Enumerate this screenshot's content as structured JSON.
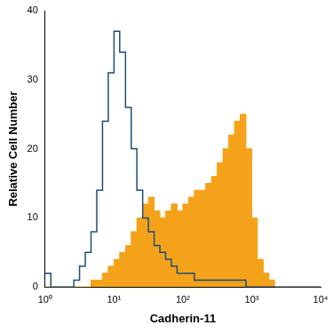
{
  "chart_data": {
    "type": "histogram",
    "xlabel": "Cadherin-11",
    "ylabel": "Relative Cell Number",
    "log": "x",
    "grid": false,
    "xlim": [
      1,
      10000
    ],
    "xticks": [
      {
        "value": 1,
        "label": "10⁰"
      },
      {
        "value": 10,
        "label": "10¹"
      },
      {
        "value": 100,
        "label": "10²"
      },
      {
        "value": 1000,
        "label": "10³"
      },
      {
        "value": 10000,
        "label": "10⁴"
      }
    ],
    "ylim": [
      0,
      40
    ],
    "yticks": [
      0,
      10,
      20,
      30,
      40
    ],
    "bins": [
      1,
      1.21,
      1.47,
      1.78,
      2.15,
      2.61,
      3.16,
      3.83,
      4.64,
      5.62,
      6.81,
      8.25,
      10,
      12.1,
      14.7,
      17.8,
      21.5,
      26.1,
      31.6,
      38.3,
      46.4,
      56.2,
      68.1,
      82.5,
      100,
      121,
      147,
      178,
      215,
      261,
      316,
      383,
      464,
      562,
      681,
      825,
      1000,
      1210,
      1470,
      1780,
      2150,
      2610,
      3160,
      3830,
      4640,
      5620,
      6810,
      8250,
      10000
    ],
    "series": [
      {
        "type": "area",
        "color": "#f5a21b",
        "values": [
          0,
          0,
          0,
          0,
          0,
          0,
          0,
          0,
          1,
          1,
          2,
          3,
          4,
          5,
          6,
          8,
          10,
          12,
          13,
          11,
          10,
          11,
          12,
          11,
          12,
          13,
          14,
          14,
          15,
          16,
          18,
          20,
          22,
          24,
          25,
          20,
          10,
          4,
          2,
          1,
          0,
          0,
          0,
          0,
          0,
          0,
          0,
          0
        ]
      },
      {
        "type": "step",
        "color": "#1c4e76",
        "values": [
          2,
          0,
          0,
          0,
          0,
          1,
          3,
          5,
          8,
          14,
          24,
          31,
          37,
          34,
          26,
          20,
          14,
          10,
          8,
          6,
          5,
          4,
          3,
          2,
          2,
          2,
          1,
          1,
          1,
          1,
          1,
          1,
          1,
          1,
          1,
          0,
          0,
          0,
          0,
          0,
          0,
          0,
          0,
          0,
          0,
          0,
          0,
          0
        ]
      }
    ]
  }
}
